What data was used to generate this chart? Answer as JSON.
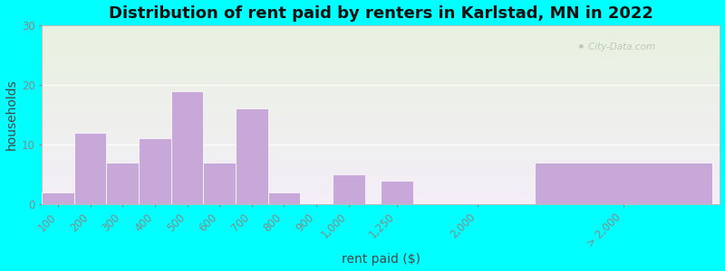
{
  "title": "Distribution of rent paid by renters in Karlstad, MN in 2022",
  "xlabel": "rent paid ($)",
  "ylabel": "households",
  "bar_color": "#c8a8d8",
  "background_outer": "#00ffff",
  "bg_color_top": "#e8f2e0",
  "bg_color_bottom": "#f4eef8",
  "ylim": [
    0,
    30
  ],
  "yticks": [
    0,
    10,
    20,
    30
  ],
  "categories": [
    "100",
    "200",
    "300",
    "400",
    "500",
    "600",
    "700",
    "800",
    "900",
    "1,000",
    "1,250",
    "2,000",
    "> 2,000"
  ],
  "values": [
    2,
    12,
    7,
    11,
    19,
    7,
    16,
    2,
    0,
    5,
    4,
    0,
    7
  ],
  "title_fontsize": 13,
  "axis_label_fontsize": 10,
  "tick_fontsize": 8.5,
  "watermark": "City-Data.com",
  "x_positions": [
    0,
    1,
    2,
    3,
    4,
    5,
    6,
    7,
    8,
    9,
    10.5,
    13,
    17.5
  ],
  "bar_widths": [
    1,
    1,
    1,
    1,
    1,
    1,
    1,
    1,
    1,
    1,
    1,
    1,
    5.5
  ],
  "xlim": [
    -0.5,
    20.5
  ]
}
